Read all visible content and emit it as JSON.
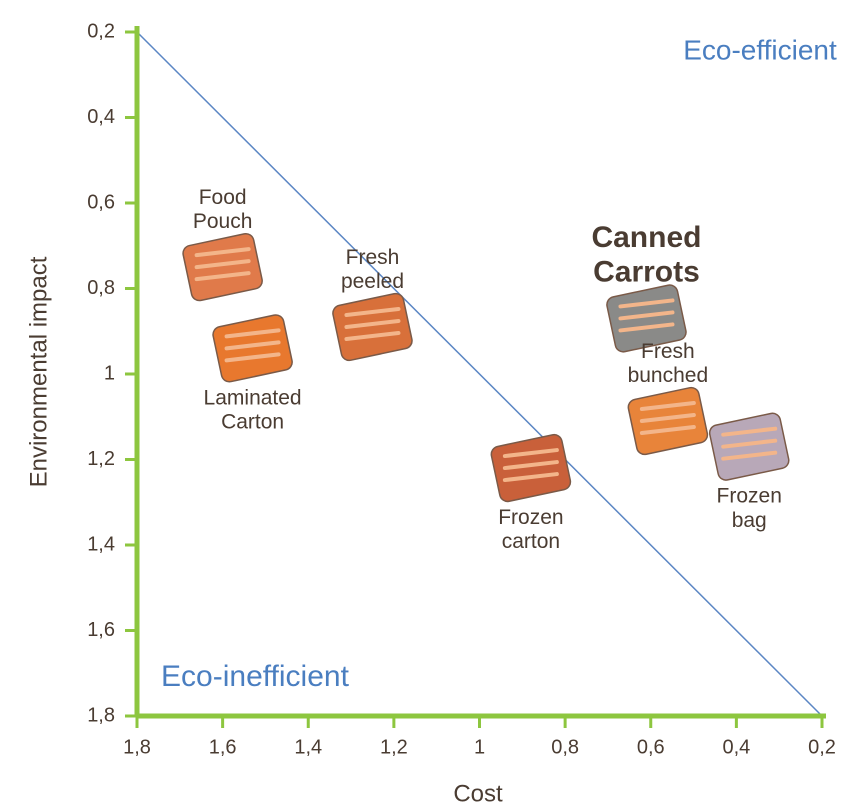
{
  "chart_data": {
    "type": "scatter",
    "x_label": "Cost",
    "y_label": "Environmental impact",
    "annotations": [
      "Eco-efficient",
      "Eco-inefficient"
    ],
    "labels": [
      "Food Pouch",
      "Laminated Carton",
      "Fresh peeled",
      "Frozen carton",
      "Canned Carrots",
      "Fresh bunched",
      "Frozen bag"
    ],
    "x": [
      1.6,
      1.53,
      1.25,
      0.88,
      0.61,
      0.56,
      0.37
    ],
    "values": [
      0.75,
      0.94,
      0.89,
      1.22,
      0.87,
      1.11,
      1.17
    ],
    "label_position": [
      "above",
      "below",
      "above",
      "below",
      "above",
      "above",
      "below"
    ],
    "colors": [
      "#e07a4a",
      "#e8782e",
      "#d8703a",
      "#c9603a",
      "#8a8a88",
      "#e8843a",
      "#b8a8b8"
    ],
    "emphasized": "Canned Carrots",
    "xlim": [
      1.8,
      0.2
    ],
    "ylim": [
      1.8,
      0.2
    ],
    "xticks": [
      {
        "value": 1.8,
        "label": "1,8"
      },
      {
        "value": 1.6,
        "label": "1,6"
      },
      {
        "value": 1.4,
        "label": "1,4"
      },
      {
        "value": 1.2,
        "label": "1,2"
      },
      1,
      {
        "value": 0.8,
        "label": "0,8"
      },
      {
        "value": 0.6,
        "label": "0,6"
      },
      {
        "value": 0.4,
        "label": "0,4"
      },
      {
        "value": 0.2,
        "label": "0,2"
      }
    ],
    "yticks": [
      {
        "value": 0.2,
        "label": "0,2"
      },
      {
        "value": 0.4,
        "label": "0,4"
      },
      {
        "value": 0.6,
        "label": "0,6"
      },
      {
        "value": 0.8,
        "label": "0,8"
      },
      1,
      {
        "value": 1.2,
        "label": "1,2"
      },
      {
        "value": 1.4,
        "label": "1,4"
      },
      {
        "value": 1.6,
        "label": "1,6"
      },
      {
        "value": 1.8,
        "label": "1,8"
      }
    ],
    "axis_color": "#8dc63f",
    "line_color": "#5b86c4",
    "annotation_color": "#4a7ec0",
    "text_color": "#4a3c32"
  }
}
